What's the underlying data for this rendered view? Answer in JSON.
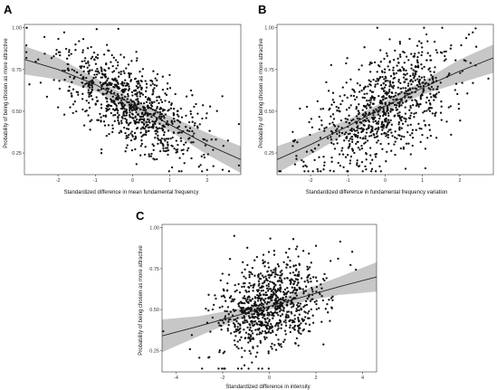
{
  "figure": {
    "background": "#ffffff",
    "band_color": "#bdbdbd",
    "point_color": "#111111",
    "line_color": "#222222"
  },
  "chart_data": [
    {
      "panel": "A",
      "type": "scatter",
      "xlabel": "Standardized difference in mean fundamental frequency",
      "ylabel": "Probability of being chosen as more attractive",
      "xlim": [
        -2.9,
        2.9
      ],
      "ylim": [
        0.12,
        1.02
      ],
      "xticks": [
        -2,
        -1,
        0,
        1,
        2
      ],
      "yticks": [
        0.25,
        0.5,
        0.75,
        1.0
      ],
      "ytick_labels": [
        "0.25",
        "0.50",
        "0.75",
        "1.00"
      ],
      "fit": {
        "x": [
          -2.9,
          -2.0,
          -1.0,
          0.0,
          1.0,
          2.0,
          2.9
        ],
        "y": [
          0.81,
          0.75,
          0.66,
          0.54,
          0.42,
          0.3,
          0.21
        ]
      },
      "ci_band": {
        "x": [
          -2.9,
          -2.0,
          -1.0,
          0.0,
          1.0,
          2.0,
          2.9
        ],
        "lower": [
          0.72,
          0.69,
          0.62,
          0.51,
          0.38,
          0.24,
          0.13
        ],
        "upper": [
          0.89,
          0.82,
          0.7,
          0.57,
          0.47,
          0.37,
          0.29
        ]
      },
      "n_points": 900,
      "point_spread": {
        "x_mean": 0.0,
        "x_sd": 0.95,
        "y_noise_sd": 0.125
      }
    },
    {
      "panel": "B",
      "type": "scatter",
      "xlabel": "Standardized difference in fundamental frequency variation",
      "ylabel": "Probability of being chosen as more attractive",
      "xlim": [
        -2.9,
        2.9
      ],
      "ylim": [
        0.12,
        1.02
      ],
      "xticks": [
        -2,
        -1,
        0,
        1,
        2
      ],
      "yticks": [
        0.25,
        0.5,
        0.75,
        1.0
      ],
      "ytick_labels": [
        "0.25",
        "0.50",
        "0.75",
        "1.00"
      ],
      "fit": {
        "x": [
          -2.9,
          -2.0,
          -1.0,
          0.0,
          1.0,
          2.0,
          2.9
        ],
        "y": [
          0.21,
          0.3,
          0.41,
          0.53,
          0.64,
          0.74,
          0.82
        ]
      },
      "ci_band": {
        "x": [
          -2.9,
          -2.0,
          -1.0,
          0.0,
          1.0,
          2.0,
          2.9
        ],
        "lower": [
          0.13,
          0.24,
          0.37,
          0.5,
          0.6,
          0.67,
          0.73
        ],
        "upper": [
          0.29,
          0.36,
          0.45,
          0.56,
          0.68,
          0.81,
          0.9
        ]
      },
      "n_points": 900,
      "point_spread": {
        "x_mean": 0.0,
        "x_sd": 0.95,
        "y_noise_sd": 0.15
      }
    },
    {
      "panel": "C",
      "type": "scatter",
      "xlabel": "Standardized difference in intensity",
      "ylabel": "Probability of being chosen as more attractive",
      "xlim": [
        -4.6,
        4.6
      ],
      "ylim": [
        0.12,
        1.02
      ],
      "xticks": [
        -4,
        -2,
        0,
        2,
        4
      ],
      "yticks": [
        0.25,
        0.5,
        0.75,
        1.0
      ],
      "ytick_labels": [
        "0.25",
        "0.50",
        "0.75",
        "1.00"
      ],
      "fit": {
        "x": [
          -4.6,
          -3.0,
          -1.5,
          0.0,
          1.5,
          3.0,
          4.6
        ],
        "y": [
          0.34,
          0.4,
          0.46,
          0.52,
          0.58,
          0.64,
          0.7
        ]
      },
      "ci_band": {
        "x": [
          -4.6,
          -3.0,
          -1.5,
          0.0,
          1.5,
          3.0,
          4.6
        ],
        "lower": [
          0.24,
          0.34,
          0.43,
          0.5,
          0.55,
          0.59,
          0.61
        ],
        "upper": [
          0.44,
          0.46,
          0.5,
          0.54,
          0.62,
          0.7,
          0.79
        ]
      },
      "n_points": 900,
      "point_spread": {
        "x_mean": 0.0,
        "x_sd": 1.1,
        "y_noise_sd": 0.13
      }
    }
  ]
}
